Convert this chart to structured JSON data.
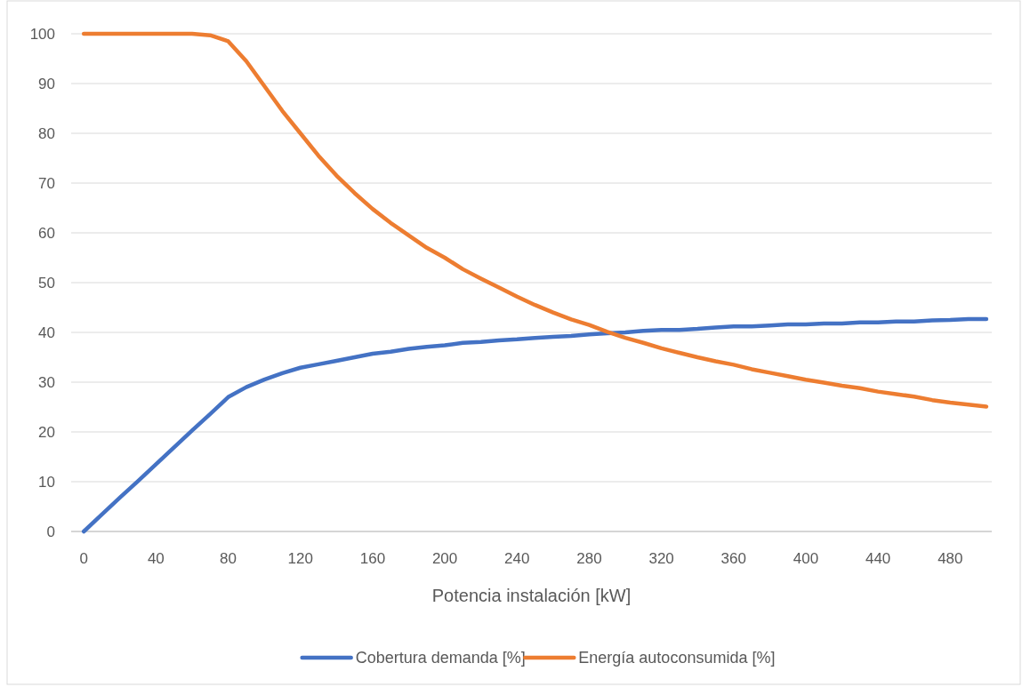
{
  "chart_data": {
    "type": "line",
    "xlabel": "Potencia instalación [kW]",
    "x": [
      0,
      10,
      20,
      30,
      40,
      50,
      60,
      70,
      80,
      90,
      100,
      110,
      120,
      130,
      140,
      150,
      160,
      170,
      180,
      190,
      200,
      210,
      220,
      230,
      240,
      250,
      260,
      270,
      280,
      290,
      300,
      310,
      320,
      330,
      340,
      350,
      360,
      370,
      380,
      390,
      400,
      410,
      420,
      430,
      440,
      450,
      460,
      470,
      480,
      490,
      500
    ],
    "series": [
      {
        "name": "Cobertura demanda [%]",
        "color": "#4472c4",
        "values": [
          0,
          3.4,
          6.8,
          10.1,
          13.5,
          16.9,
          20.3,
          23.6,
          27,
          29,
          30.5,
          31.8,
          32.9,
          33.6,
          34.3,
          35,
          35.7,
          36.1,
          36.7,
          37.1,
          37.4,
          37.9,
          38.1,
          38.4,
          38.6,
          38.9,
          39.1,
          39.3,
          39.6,
          39.8,
          40,
          40.3,
          40.5,
          40.5,
          40.7,
          41,
          41.2,
          41.2,
          41.4,
          41.6,
          41.6,
          41.8,
          41.8,
          42,
          42,
          42.2,
          42.2,
          42.4,
          42.5,
          42.7,
          42.7
        ]
      },
      {
        "name": "Energía autoconsumida [%]",
        "color": "#ed7d31",
        "values": [
          100,
          100,
          100,
          100,
          100,
          100,
          100,
          99.7,
          98.5,
          94.5,
          89.5,
          84.5,
          80,
          75.5,
          71.5,
          68,
          64.8,
          62,
          59.5,
          57,
          55,
          52.7,
          50.8,
          49,
          47.2,
          45.5,
          44,
          42.6,
          41.5,
          40.1,
          38.9,
          37.9,
          36.8,
          35.9,
          35,
          34.2,
          33.5,
          32.6,
          31.9,
          31.2,
          30.5,
          29.9,
          29.3,
          28.8,
          28.1,
          27.6,
          27.1,
          26.4,
          25.9,
          25.5,
          25.1
        ]
      }
    ],
    "xlim": [
      -7,
      503
    ],
    "xticks": [
      0,
      40,
      80,
      120,
      160,
      200,
      240,
      280,
      320,
      360,
      400,
      440,
      480
    ],
    "ylim": [
      0,
      100
    ],
    "yticks": [
      0,
      10,
      20,
      30,
      40,
      50,
      60,
      70,
      80,
      90,
      100
    ],
    "grid": "y",
    "legend": "bottom",
    "marker": "none",
    "line_style": "solid"
  }
}
